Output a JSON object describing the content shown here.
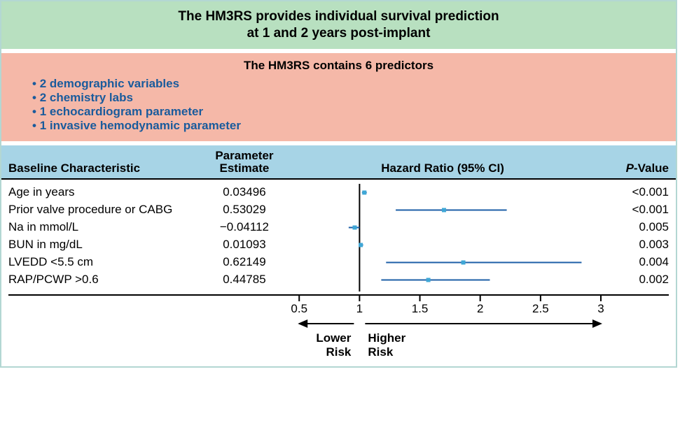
{
  "title_line1": "The HM3RS provides individual survival prediction",
  "title_line2": "at 1 and 2 years post-implant",
  "subtitle": "The HM3RS contains 6 predictors",
  "bullets": [
    "2 demographic variables",
    "2 chemistry labs",
    "1 echocardiogram parameter",
    "1 invasive hemodynamic parameter"
  ],
  "columns": {
    "characteristic": "Baseline Characteristic",
    "estimate_l1": "Parameter",
    "estimate_l2": "Estimate",
    "hr": "Hazard Ratio (95% CI)",
    "pvalue_label": "P",
    "pvalue_suffix": "-Value"
  },
  "rows": [
    {
      "char": "Age in years",
      "est": "0.03496",
      "pv": "<0.001",
      "hr": 1.04,
      "lo": 1.02,
      "hi": 1.06
    },
    {
      "char": "Prior valve procedure or CABG",
      "est": "0.53029",
      "pv": "<0.001",
      "hr": 1.7,
      "lo": 1.3,
      "hi": 2.22
    },
    {
      "char": "Na in mmol/L",
      "est": "−0.04112",
      "pv": "0.005",
      "hr": 0.96,
      "lo": 0.91,
      "hi": 1.0
    },
    {
      "char": "BUN in mg/dL",
      "est": "0.01093",
      "pv": "0.003",
      "hr": 1.01,
      "lo": 1.0,
      "hi": 1.03
    },
    {
      "char": "LVEDD <5.5 cm",
      "est": "0.62149",
      "pv": "0.004",
      "hr": 1.86,
      "lo": 1.22,
      "hi": 2.84
    },
    {
      "char": "RAP/PCWP >0.6",
      "est": "0.44785",
      "pv": "0.002",
      "hr": 1.57,
      "lo": 1.18,
      "hi": 2.08
    }
  ],
  "forest": {
    "xmin": 0.4,
    "xmax": 3.0,
    "reference": 1.0,
    "ticks": [
      0.5,
      1,
      1.5,
      2,
      2.5,
      3
    ],
    "tick_labels": [
      "0.5",
      "1",
      "1.5",
      "2",
      "2.5",
      "3"
    ],
    "lower_label_l1": "Lower",
    "lower_label_l2": "Risk",
    "higher_label_l1": "Higher",
    "higher_label_l2": "Risk",
    "line_color": "#1d5fa7",
    "marker_color": "#3fa7d6",
    "axis_color": "#000000",
    "marker_size": 6,
    "line_width": 2
  },
  "colors": {
    "green": "#b8e0c0",
    "red": "#f5b8a8",
    "blue_header": "#a7d4e6",
    "bullet_text": "#1a5b9c",
    "border": "#b3d7d3"
  },
  "fonts": {
    "title_size": 19,
    "body_size": 17
  }
}
